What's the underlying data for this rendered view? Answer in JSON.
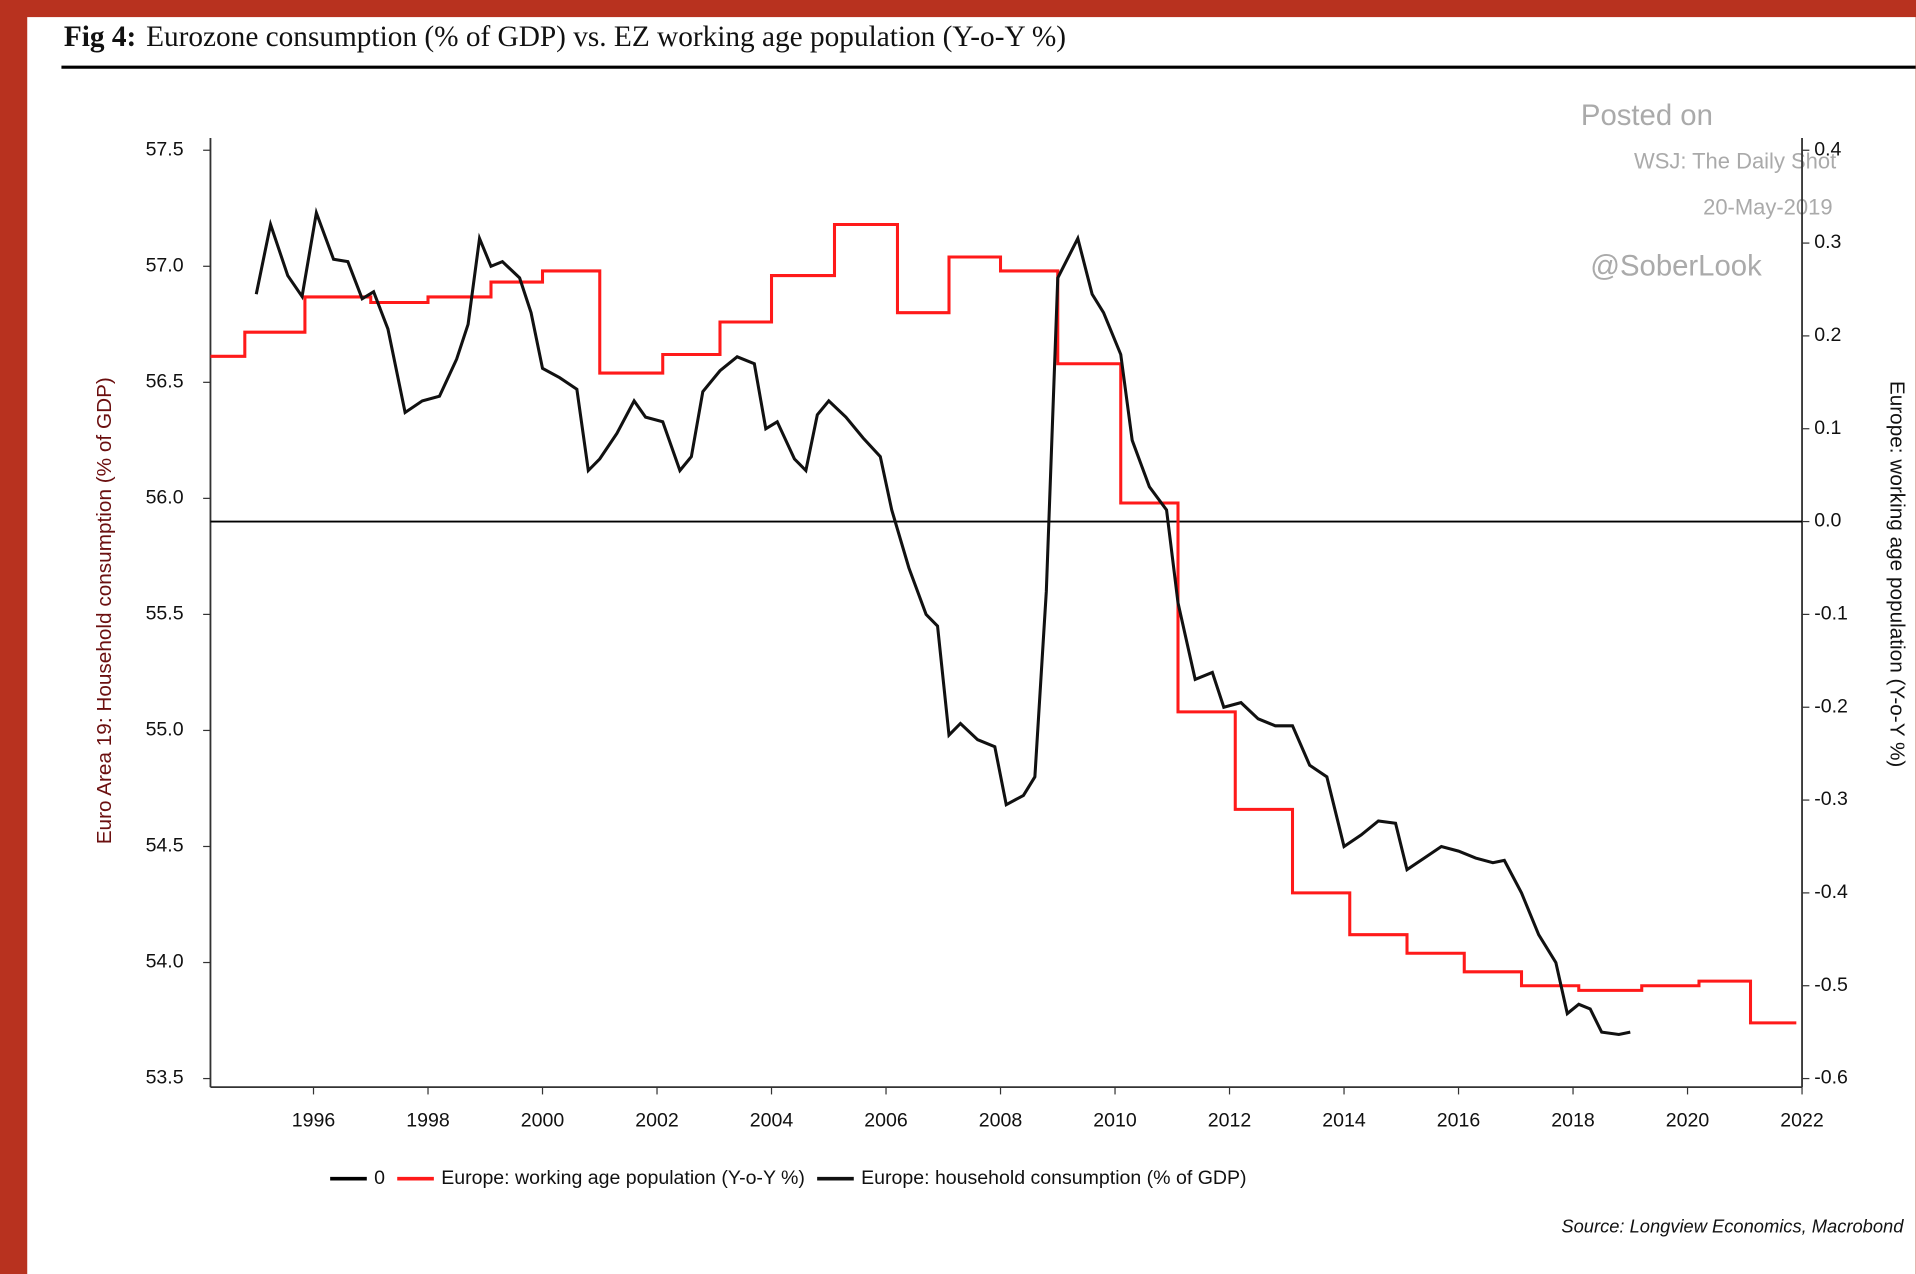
{
  "chart_data": {
    "type": "line",
    "figure_label": "Fig 4:",
    "title": "Eurozone consumption (% of GDP) vs. EZ working age population (Y-o-Y %)",
    "ylabel": "Euro Area 19: Household consumption (% of GDP)",
    "y2label": "Europe: working age population (Y-o-Y %)",
    "source": "Source: Longview Economics, Macrobond",
    "annotations": [
      "Posted on",
      "WSJ: The Daily Shot",
      "20-May-2019",
      "@SoberLook"
    ],
    "xlim": [
      1994.2,
      2022
    ],
    "xticks": [
      1996,
      1998,
      2000,
      2002,
      2004,
      2006,
      2008,
      2010,
      2012,
      2014,
      2016,
      2018,
      2020,
      2022
    ],
    "ylim": [
      53.5,
      57.5
    ],
    "yticks": [
      57.5,
      {
        "value": 57,
        "label": "57.0"
      },
      56.5,
      {
        "value": 56,
        "label": "56.0"
      },
      55.5,
      {
        "value": 55,
        "label": "55.0"
      },
      54.5,
      {
        "value": 54,
        "label": "54.0"
      },
      53.5
    ],
    "y2lim": [
      -0.6,
      0.4
    ],
    "y2ticks": [
      0.4,
      0.3,
      0.2,
      0.1,
      {
        "value": 0,
        "label": "0.0"
      },
      -0.1,
      -0.2,
      -0.3,
      -0.4,
      -0.5,
      -0.6
    ],
    "series": [
      {
        "name": "0",
        "color": "#000000",
        "axis": "y2",
        "x": [
          1994.2,
          2022
        ],
        "values": [
          0,
          0
        ]
      },
      {
        "name": "Europe: working age population (Y-o-Y %)",
        "color": "#ff1a1a",
        "axis": "y2",
        "step": true,
        "x": [
          1994.2,
          1994.8,
          1995.85,
          1997,
          1998,
          1999.1,
          2000,
          2001,
          2002.1,
          2003.1,
          2004,
          2005.1,
          2006.2,
          2007.1,
          2008,
          2009,
          2010.1,
          2011.1,
          2012.1,
          2013.1,
          2014.1,
          2015.1,
          2016.1,
          2017.1,
          2018.1,
          2019.2,
          2020.2,
          2021.1,
          2021.9
        ],
        "values": [
          0.178,
          0.204,
          0.242,
          0.236,
          0.242,
          0.258,
          0.27,
          0.16,
          0.18,
          0.215,
          0.265,
          0.32,
          0.225,
          0.285,
          0.27,
          0.17,
          0.02,
          -0.205,
          -0.31,
          -0.4,
          -0.445,
          -0.465,
          -0.485,
          -0.5,
          -0.505,
          -0.5,
          -0.495,
          -0.54,
          -0.54
        ]
      },
      {
        "name": "Europe: household consumption (% of GDP)",
        "color": "#111111",
        "axis": "y",
        "x": [
          1995.0,
          1995.25,
          1995.55,
          1995.8,
          1996.05,
          1996.35,
          1996.6,
          1996.85,
          1997.05,
          1997.3,
          1997.6,
          1997.9,
          1998.2,
          1998.5,
          1998.7,
          1998.9,
          1999.1,
          1999.3,
          1999.6,
          1999.8,
          2000.0,
          2000.3,
          2000.6,
          2000.8,
          2001.0,
          2001.3,
          2001.6,
          2001.8,
          2002.1,
          2002.4,
          2002.6,
          2002.8,
          2003.1,
          2003.4,
          2003.7,
          2003.9,
          2004.1,
          2004.4,
          2004.6,
          2004.8,
          2005.0,
          2005.3,
          2005.6,
          2005.9,
          2006.1,
          2006.4,
          2006.7,
          2006.9,
          2007.1,
          2007.3,
          2007.6,
          2007.9,
          2008.1,
          2008.4,
          2008.6,
          2008.8,
          2009.0,
          2009.35,
          2009.6,
          2009.8,
          2010.1,
          2010.3,
          2010.6,
          2010.9,
          2011.1,
          2011.4,
          2011.7,
          2011.9,
          2012.2,
          2012.5,
          2012.8,
          2013.1,
          2013.4,
          2013.7,
          2014.0,
          2014.3,
          2014.6,
          2014.9,
          2015.1,
          2015.4,
          2015.7,
          2016.0,
          2016.3,
          2016.6,
          2016.8,
          2017.1,
          2017.4,
          2017.7,
          2017.9,
          2018.1,
          2018.3,
          2018.5,
          2018.8,
          2019.0
        ],
        "values": [
          56.88,
          57.18,
          56.96,
          56.87,
          57.23,
          57.03,
          57.02,
          56.86,
          56.89,
          56.73,
          56.37,
          56.42,
          56.44,
          56.6,
          56.75,
          57.12,
          57.0,
          57.02,
          56.95,
          56.8,
          56.56,
          56.52,
          56.47,
          56.12,
          56.17,
          56.28,
          56.42,
          56.35,
          56.33,
          56.12,
          56.18,
          56.46,
          56.55,
          56.61,
          56.58,
          56.3,
          56.33,
          56.17,
          56.12,
          56.36,
          56.42,
          56.35,
          56.26,
          56.18,
          55.95,
          55.7,
          55.5,
          55.45,
          54.98,
          55.03,
          54.96,
          54.93,
          54.68,
          54.72,
          54.8,
          55.6,
          56.95,
          57.12,
          56.88,
          56.8,
          56.62,
          56.25,
          56.05,
          55.95,
          55.55,
          55.22,
          55.25,
          55.1,
          55.12,
          55.05,
          55.02,
          55.02,
          54.85,
          54.8,
          54.5,
          54.55,
          54.61,
          54.6,
          54.4,
          54.45,
          54.5,
          54.48,
          54.45,
          54.43,
          54.44,
          54.3,
          54.12,
          54.0,
          53.78,
          53.82,
          53.8,
          53.7,
          53.69,
          53.7
        ]
      }
    ]
  }
}
